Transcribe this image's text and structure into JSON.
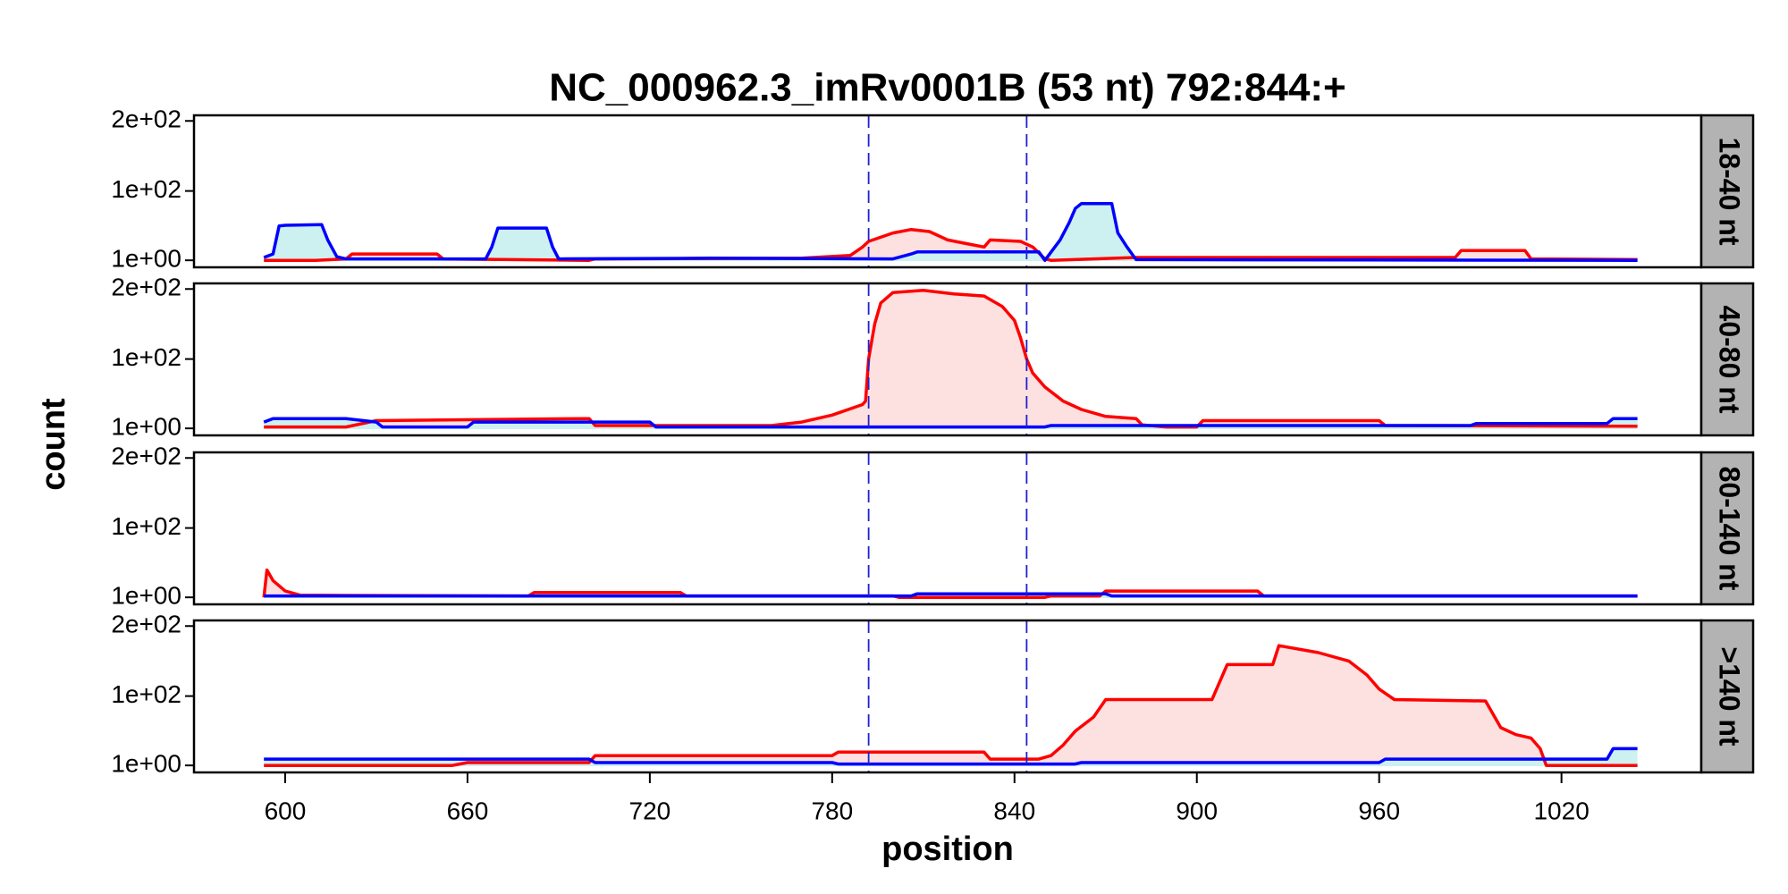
{
  "chart_data": {
    "type": "line",
    "title": "NC_000962.3_imRv0001B (53 nt) 792:844:+",
    "xlabel": "position",
    "ylabel": "count",
    "xlim": [
      570,
      1066
    ],
    "xticks": [
      600,
      660,
      720,
      780,
      840,
      900,
      960,
      1020
    ],
    "ylim": [
      -9,
      208
    ],
    "yticks": [
      {
        "value": 1,
        "label": "1e+00"
      },
      {
        "value": 100,
        "label": "1e+02"
      },
      {
        "value": 200,
        "label": "2e+02"
      }
    ],
    "vlines": [
      792,
      844
    ],
    "vline_color": "#2020d0",
    "panels": [
      {
        "label": "18-40 nt",
        "series": [
          {
            "color": "#ff0000",
            "fill": "#fde0e0",
            "x": [
              593,
              610,
              620,
              622,
              650,
              652,
              700,
              702,
              770,
              786,
              790,
              792,
              800,
              806,
              812,
              818,
              824,
              830,
              832,
              842,
              846,
              850,
              852,
              880,
              985,
              987,
              1008,
              1010,
              1045
            ],
            "values": [
              1,
              1,
              3,
              10,
              10,
              3,
              1,
              3,
              4,
              8,
              20,
              28,
              40,
              45,
              42,
              30,
              25,
              20,
              30,
              28,
              20,
              3,
              1,
              5,
              5,
              15,
              15,
              3,
              2
            ]
          },
          {
            "color": "#0000ff",
            "fill": "#cdf0f0",
            "x": [
              593,
              596,
              598,
              600,
              612,
              614,
              617,
              620,
              666,
              668,
              670,
              686,
              688,
              690,
              740,
              800,
              806,
              808,
              848,
              850,
              855,
              858,
              860,
              862,
              872,
              874,
              877,
              880,
              1045
            ],
            "values": [
              5,
              10,
              50,
              51,
              52,
              30,
              6,
              3,
              3,
              20,
              47,
              47,
              20,
              3,
              4,
              3,
              10,
              13,
              13,
              1,
              30,
              55,
              75,
              82,
              82,
              40,
              20,
              2,
              1
            ]
          }
        ]
      },
      {
        "label": "40-80 nt",
        "series": [
          {
            "color": "#ff0000",
            "fill": "#fde0e0",
            "x": [
              593,
              620,
              630,
              700,
              702,
              760,
              770,
              780,
              790,
              791,
              792,
              794,
              796,
              800,
              810,
              820,
              830,
              836,
              840,
              842,
              844,
              846,
              850,
              856,
              862,
              870,
              880,
              882,
              890,
              900,
              902,
              960,
              962,
              1045
            ],
            "values": [
              3,
              3,
              12,
              15,
              5,
              5,
              10,
              20,
              35,
              40,
              100,
              150,
              180,
              195,
              198,
              193,
              190,
              175,
              155,
              130,
              100,
              80,
              60,
              40,
              28,
              18,
              15,
              6,
              3,
              3,
              12,
              12,
              5,
              4
            ]
          },
          {
            "color": "#0000ff",
            "fill": "#cdf0f0",
            "x": [
              593,
              596,
              620,
              630,
              632,
              660,
              662,
              720,
              722,
              850,
              852,
              990,
              992,
              1035,
              1037,
              1045
            ],
            "values": [
              10,
              15,
              15,
              10,
              3,
              3,
              10,
              10,
              3,
              3,
              5,
              5,
              8,
              8,
              15,
              15
            ]
          }
        ]
      },
      {
        "label": "80-140 nt",
        "series": [
          {
            "color": "#ff0000",
            "fill": "#fde0e0",
            "x": [
              593,
              594,
              596,
              600,
              605,
              680,
              682,
              730,
              732,
              800,
              802,
              850,
              852,
              868,
              870,
              920,
              922,
              1045
            ],
            "values": [
              1,
              40,
              25,
              10,
              4,
              3,
              8,
              8,
              3,
              3,
              1,
              1,
              3,
              3,
              10,
              10,
              3,
              3
            ]
          },
          {
            "color": "#0000ff",
            "fill": "#cdf0f0",
            "x": [
              593,
              806,
              808,
              870,
              872,
              1045
            ],
            "values": [
              3,
              3,
              6,
              6,
              3,
              3
            ]
          }
        ]
      },
      {
        "label": ">140 nt",
        "series": [
          {
            "color": "#ff0000",
            "fill": "#fde0e0",
            "x": [
              593,
              655,
              660,
              700,
              702,
              780,
              782,
              830,
              832,
              848,
              852,
              856,
              860,
              866,
              870,
              905,
              910,
              925,
              927,
              940,
              950,
              956,
              960,
              965,
              995,
              1000,
              1005,
              1010,
              1013,
              1015,
              1045
            ],
            "values": [
              1,
              1,
              5,
              5,
              15,
              15,
              20,
              20,
              10,
              10,
              15,
              30,
              50,
              70,
              95,
              95,
              145,
              145,
              172,
              162,
              150,
              130,
              110,
              95,
              93,
              55,
              45,
              40,
              25,
              1,
              1
            ]
          },
          {
            "color": "#0000ff",
            "fill": "#cdf0f0",
            "x": [
              593,
              700,
              702,
              780,
              782,
              860,
              862,
              960,
              962,
              1035,
              1037,
              1045
            ],
            "values": [
              10,
              10,
              5,
              5,
              3,
              3,
              5,
              5,
              10,
              10,
              25,
              25
            ]
          }
        ]
      }
    ]
  }
}
